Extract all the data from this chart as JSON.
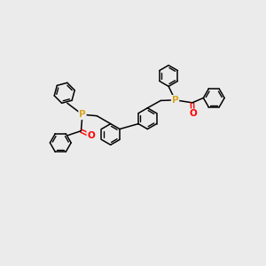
{
  "bg_color": "#ebebeb",
  "bond_color": "#000000",
  "P_color": "#DAA520",
  "O_color": "#FF0000",
  "lw": 1.1,
  "r": 0.4,
  "figsize": [
    3.0,
    3.0
  ],
  "dpi": 100,
  "xlim": [
    0,
    10
  ],
  "ylim": [
    0,
    10
  ]
}
